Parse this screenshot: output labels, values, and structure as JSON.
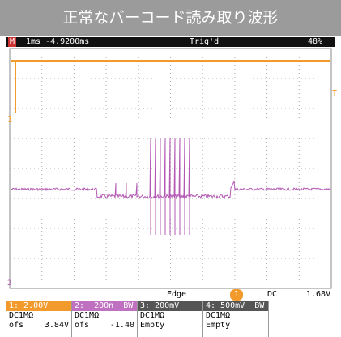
{
  "title": "正常なバーコード読み取り波形",
  "status_bar": {
    "mode": "M",
    "timebase": "1ms -4.9200ms",
    "trigger": "Trig'd",
    "memory": "48%"
  },
  "markers": {
    "ch1": "1",
    "trigger_level": "T",
    "ch2": "2"
  },
  "trigger_bar": {
    "type": "Edge",
    "source": "1",
    "coupling": "DC",
    "level": "1.68V"
  },
  "channels": [
    {
      "scale": "1: 2.00V",
      "input": "DC1MΩ",
      "offset_label": "ofs",
      "offset": "3.84V"
    },
    {
      "scale": "2:  200n  BW",
      "input": "DC1MΩ",
      "offset_label": "ofs",
      "offset": "-1.40"
    },
    {
      "scale": "3: 200mV",
      "input": "DC1MΩ",
      "state": "Empty"
    },
    {
      "scale": "4: 500mV  BW",
      "input": "DC1MΩ",
      "state": "Empty"
    }
  ]
}
